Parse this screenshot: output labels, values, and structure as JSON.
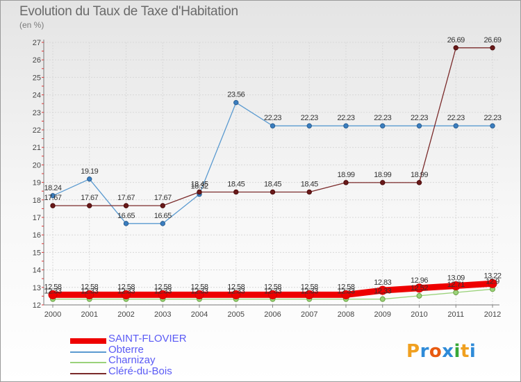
{
  "title": "Evolution du Taux de Taxe d'Habitation",
  "unit": "(en %)",
  "logo": {
    "text": "Proxiti",
    "letters": [
      "P",
      "r",
      "o",
      "x",
      "i",
      "t",
      "i"
    ],
    "colors": [
      "#f0a020",
      "#2f8bd8",
      "#e85a10",
      "#2f8bd8",
      "#38a838",
      "#f0a020",
      "#2f8bd8"
    ]
  },
  "chart_data": {
    "type": "line",
    "title": "Evolution du Taux de Taxe d'Habitation",
    "ylabel": "(en %)",
    "x": [
      "2000",
      "2001",
      "2002",
      "2003",
      "2004",
      "2005",
      "2006",
      "2007",
      "2008",
      "2009",
      "2010",
      "2011",
      "2012"
    ],
    "ylim": [
      12,
      27
    ],
    "yticks": [
      12,
      13,
      14,
      15,
      16,
      17,
      18,
      19,
      20,
      21,
      22,
      23,
      24,
      25,
      26,
      27
    ],
    "grid": true,
    "legend_position": "bottom-left",
    "series": [
      {
        "name": "SAINT-FLOVIER",
        "color": "#ee0000",
        "width": 9,
        "values": [
          12.58,
          12.58,
          12.58,
          12.58,
          12.58,
          12.58,
          12.58,
          12.58,
          12.58,
          12.83,
          12.96,
          13.09,
          13.22
        ],
        "labels": [
          "12.58",
          "12.58",
          "12.58",
          "12.58",
          "12.58",
          "12.58",
          "12.58",
          "12.58",
          "12.58",
          "12.83",
          "12.96",
          "13.09",
          "13.22"
        ]
      },
      {
        "name": "Obterre",
        "color": "#5a9ad0",
        "width": 1.3,
        "values": [
          18.24,
          19.19,
          16.65,
          16.65,
          18.32,
          23.56,
          22.23,
          22.23,
          22.23,
          22.23,
          22.23,
          22.23,
          22.23
        ],
        "labels": [
          "18.24",
          "19.19",
          "16.65",
          "16.65",
          "18.32",
          "23.56",
          "22.23",
          "22.23",
          "22.23",
          "22.23",
          "22.23",
          "22.23",
          "22.23"
        ]
      },
      {
        "name": "Charnizay",
        "color": "#9ad27a",
        "width": 1.3,
        "values": [
          12.33,
          12.33,
          12.33,
          12.33,
          12.33,
          12.33,
          12.33,
          12.33,
          12.33,
          12.33,
          12.52,
          12.71,
          12.9
        ],
        "labels": [
          "12.33",
          "12.33",
          "12.33",
          "12.33",
          "12.33",
          "12.33",
          "12.33",
          "12.33",
          "12.33",
          "12.33",
          "12.52",
          "12.71",
          "12.9"
        ]
      },
      {
        "name": "Cléré-du-Bois",
        "color": "#7a2a2a",
        "width": 1.3,
        "values": [
          17.67,
          17.67,
          17.67,
          17.67,
          18.45,
          18.45,
          18.45,
          18.45,
          18.99,
          18.99,
          18.99,
          26.69,
          26.69
        ],
        "labels": [
          "17.67",
          "17.67",
          "17.67",
          "17.67",
          "18.45",
          "18.45",
          "18.45",
          "18.45",
          "18.99",
          "18.99",
          "18.99",
          "26.69",
          "26.69"
        ]
      }
    ]
  }
}
